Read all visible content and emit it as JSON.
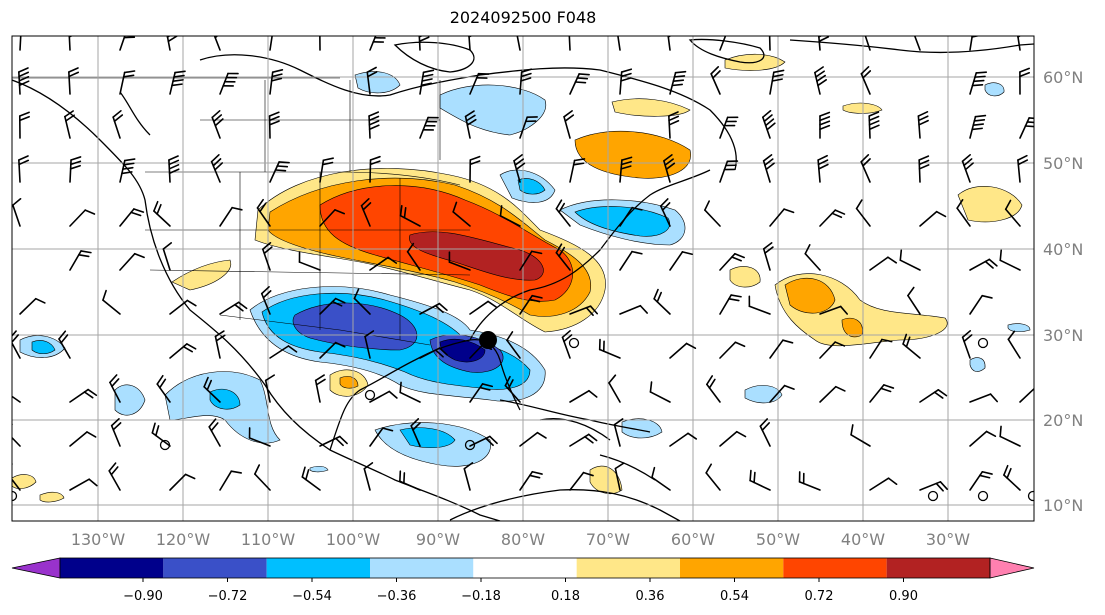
{
  "title": "2024092500 F048",
  "map": {
    "lon_labels": [
      "130°W",
      "120°W",
      "110°W",
      "100°W",
      "90°W",
      "80°W",
      "70°W",
      "60°W",
      "50°W",
      "40°W",
      "30°W"
    ],
    "lat_labels": [
      "60°N",
      "50°N",
      "40°N",
      "30°N",
      "20°N",
      "10°N"
    ],
    "lon_values": [
      -130,
      -120,
      -110,
      -100,
      -90,
      -80,
      -70,
      -60,
      -50,
      -40,
      -30
    ],
    "lat_values": [
      60,
      50,
      40,
      30,
      20,
      10
    ],
    "grid": true,
    "marker_icon": "filled-circle-icon"
  },
  "colorbar": {
    "tick_labels": [
      "−0.90",
      "−0.72",
      "−0.54",
      "−0.36",
      "−0.18",
      "0.18",
      "0.36",
      "0.54",
      "0.72",
      "0.90"
    ],
    "colors": [
      "#9932cc",
      "#00008b",
      "#3a50c8",
      "#00bfff",
      "#aadfff",
      "#ffffff",
      "#ffe788",
      "#ffa500",
      "#ff4500",
      "#b22222",
      "#ff80b0"
    ],
    "extend": "both"
  }
}
